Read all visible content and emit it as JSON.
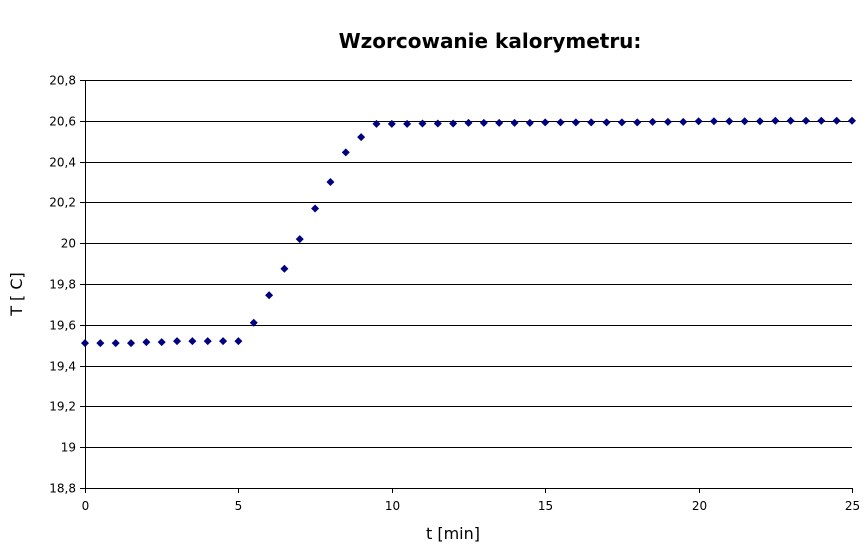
{
  "chart_data": {
    "type": "scatter",
    "title": "Wzorcowanie kalorymetru:",
    "xlabel": "t [min]",
    "ylabel": "T [ C]",
    "xlim": [
      0,
      25
    ],
    "ylim": [
      18.8,
      20.8
    ],
    "x_ticks": [
      0,
      5,
      10,
      15,
      20,
      25
    ],
    "x_tick_labels": [
      "0",
      "5",
      "10",
      "15",
      "20",
      "25"
    ],
    "y_ticks": [
      18.8,
      19,
      19.2,
      19.4,
      19.6,
      19.8,
      20,
      20.2,
      20.4,
      20.6,
      20.8
    ],
    "y_tick_labels": [
      "18,8",
      "19",
      "19,2",
      "19,4",
      "19,6",
      "19,8",
      "20",
      "20,2",
      "20,4",
      "20,6",
      "20,8"
    ],
    "grid": "horizontal",
    "marker_color": "#000080",
    "series": [
      {
        "x": [
          0,
          0.5,
          1,
          1.5,
          2,
          2.5,
          3,
          3.5,
          4,
          4.5,
          5,
          5.5,
          6,
          6.5,
          7,
          7.5,
          8,
          8.5,
          9,
          9.5,
          10,
          10.5,
          11,
          11.5,
          12,
          12.5,
          13,
          13.5,
          14,
          14.5,
          15,
          15.5,
          16,
          16.5,
          17,
          17.5,
          18,
          18.5,
          19,
          19.5,
          20,
          20.5,
          21,
          21.5,
          22,
          22.5,
          23,
          23.5,
          24,
          24.5,
          25
        ],
        "y": [
          19.51,
          19.51,
          19.51,
          19.51,
          19.515,
          19.515,
          19.52,
          19.52,
          19.52,
          19.52,
          19.52,
          19.61,
          19.745,
          19.875,
          20.02,
          20.17,
          20.3,
          20.445,
          20.52,
          20.585,
          20.585,
          20.585,
          20.587,
          20.587,
          20.587,
          20.59,
          20.59,
          20.59,
          20.59,
          20.59,
          20.592,
          20.592,
          20.592,
          20.592,
          20.592,
          20.592,
          20.592,
          20.595,
          20.595,
          20.595,
          20.598,
          20.598,
          20.598,
          20.598,
          20.598,
          20.6,
          20.6,
          20.6,
          20.6,
          20.6,
          20.6
        ]
      }
    ]
  }
}
